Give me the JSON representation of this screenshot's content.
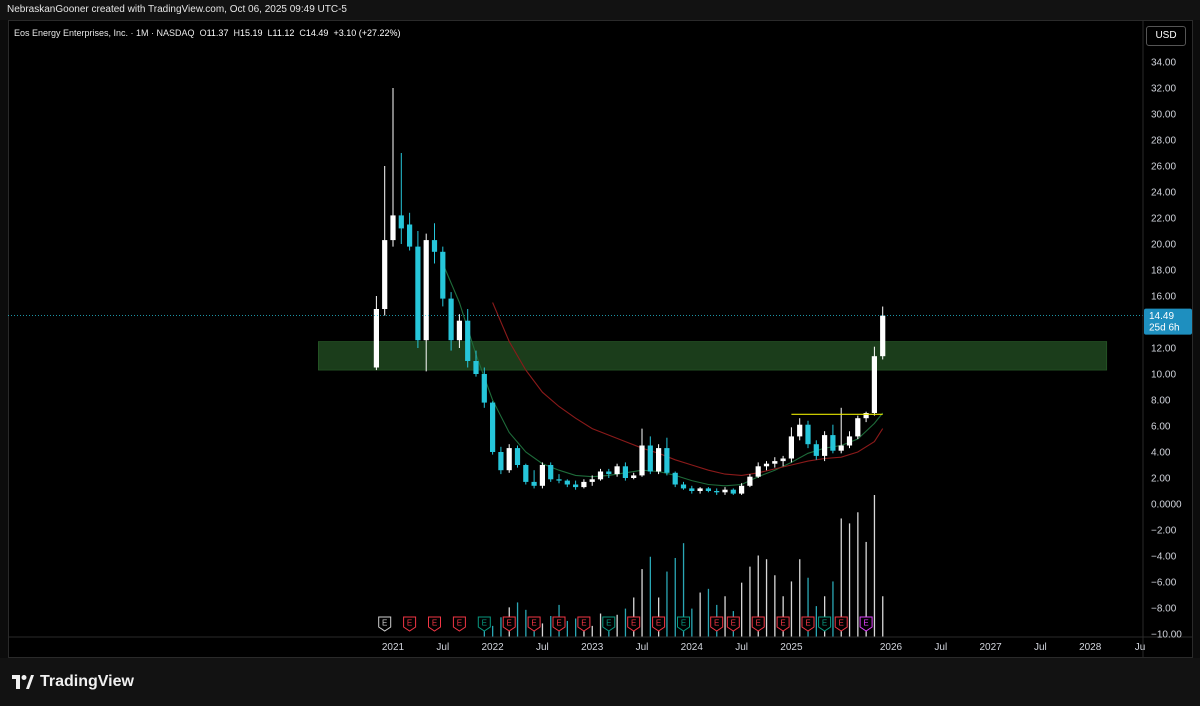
{
  "header": {
    "credit": "NebraskanGooner created with TradingView.com, Oct 06, 2025 09:49 UTC-5"
  },
  "legend": {
    "symbol": "Eos Energy Enterprises, Inc. · 1M · NASDAQ",
    "open_label": "O",
    "open": "11.37",
    "high_label": "H",
    "high": "15.19",
    "low_label": "L",
    "low": "11.12",
    "close_label": "C",
    "close": "14.49",
    "change": "+3.10 (+27.22%)"
  },
  "currency_button": "USD",
  "footer": {
    "brand": "TradingView",
    "logo_icon": "tradingview-logo-icon"
  },
  "colors": {
    "up": "#ffffff",
    "down": "#26c6da",
    "zone": "#1b3d1b",
    "ma_fast": "#1e6b3a",
    "ma_slow": "#8b1a1a",
    "resistance": "#e5e500",
    "earnings_down": "#f23645",
    "earnings_up": "#089981",
    "earnings_next": "#e040fb"
  },
  "chart_data": {
    "type": "candlestick",
    "interval": "1M",
    "y_ticks": [
      "34.00",
      "32.00",
      "30.00",
      "28.00",
      "26.00",
      "24.00",
      "22.00",
      "20.00",
      "18.00",
      "16.00",
      "14.00",
      "12.00",
      "10.00",
      "8.00",
      "6.00",
      "4.00",
      "2.00",
      "0.0000",
      "−2.00",
      "−4.00",
      "−6.00",
      "−8.00",
      "−10.00"
    ],
    "ylim": [
      -11,
      35
    ],
    "x_ticks": [
      {
        "label": "2021",
        "m": 0
      },
      {
        "label": "Jul",
        "m": 6
      },
      {
        "label": "2022",
        "m": 12
      },
      {
        "label": "Jul",
        "m": 18
      },
      {
        "label": "2023",
        "m": 24
      },
      {
        "label": "Jul",
        "m": 30
      },
      {
        "label": "2024",
        "m": 36
      },
      {
        "label": "Jul",
        "m": 42
      },
      {
        "label": "2025",
        "m": 48
      },
      {
        "label": "2026",
        "m": 60
      },
      {
        "label": "Jul",
        "m": 66
      },
      {
        "label": "2027",
        "m": 72
      },
      {
        "label": "Jul",
        "m": 78
      },
      {
        "label": "2028",
        "m": 84
      },
      {
        "label": "Ju",
        "m": 90
      }
    ],
    "candles": [
      {
        "m": -2,
        "o": 10.5,
        "h": 16,
        "l": 10.3,
        "c": 15
      },
      {
        "m": -1,
        "o": 15,
        "h": 26,
        "l": 14.5,
        "c": 20.3
      },
      {
        "m": 0,
        "o": 20.3,
        "h": 32,
        "l": 19.8,
        "c": 22.2
      },
      {
        "m": 1,
        "o": 22.2,
        "h": 27,
        "l": 20,
        "c": 21.2
      },
      {
        "m": 2,
        "o": 21.5,
        "h": 22.4,
        "l": 19.5,
        "c": 19.8
      },
      {
        "m": 3,
        "o": 19.8,
        "h": 21,
        "l": 12,
        "c": 12.6
      },
      {
        "m": 4,
        "o": 12.6,
        "h": 20.8,
        "l": 10.2,
        "c": 20.3
      },
      {
        "m": 5,
        "o": 20.3,
        "h": 21.6,
        "l": 18.5,
        "c": 19.4
      },
      {
        "m": 6,
        "o": 19.4,
        "h": 19.8,
        "l": 15.2,
        "c": 15.8
      },
      {
        "m": 7,
        "o": 15.8,
        "h": 16.3,
        "l": 11.8,
        "c": 12.6
      },
      {
        "m": 8,
        "o": 12.6,
        "h": 14.6,
        "l": 12,
        "c": 14.1
      },
      {
        "m": 9,
        "o": 14.1,
        "h": 15,
        "l": 10.5,
        "c": 11
      },
      {
        "m": 10,
        "o": 11,
        "h": 11.8,
        "l": 9.8,
        "c": 10
      },
      {
        "m": 11,
        "o": 10,
        "h": 10.5,
        "l": 7.4,
        "c": 7.8
      },
      {
        "m": 12,
        "o": 7.8,
        "h": 7.9,
        "l": 3.8,
        "c": 4
      },
      {
        "m": 13,
        "o": 4,
        "h": 4.4,
        "l": 2.3,
        "c": 2.6
      },
      {
        "m": 14,
        "o": 2.6,
        "h": 4.6,
        "l": 2.4,
        "c": 4.3
      },
      {
        "m": 15,
        "o": 4.3,
        "h": 4.5,
        "l": 2.8,
        "c": 3
      },
      {
        "m": 16,
        "o": 3,
        "h": 3.1,
        "l": 1.5,
        "c": 1.7
      },
      {
        "m": 17,
        "o": 1.7,
        "h": 2.6,
        "l": 1.2,
        "c": 1.4
      },
      {
        "m": 18,
        "o": 1.4,
        "h": 3.2,
        "l": 1.2,
        "c": 3
      },
      {
        "m": 19,
        "o": 3,
        "h": 3.2,
        "l": 1.7,
        "c": 1.9
      },
      {
        "m": 20,
        "o": 1.9,
        "h": 2.3,
        "l": 1.6,
        "c": 1.8
      },
      {
        "m": 21,
        "o": 1.8,
        "h": 1.9,
        "l": 1.3,
        "c": 1.5
      },
      {
        "m": 22,
        "o": 1.5,
        "h": 1.8,
        "l": 1.1,
        "c": 1.3
      },
      {
        "m": 23,
        "o": 1.3,
        "h": 1.9,
        "l": 1.2,
        "c": 1.7
      },
      {
        "m": 24,
        "o": 1.7,
        "h": 2.2,
        "l": 1.4,
        "c": 1.9
      },
      {
        "m": 25,
        "o": 1.9,
        "h": 2.7,
        "l": 1.8,
        "c": 2.5
      },
      {
        "m": 26,
        "o": 2.5,
        "h": 2.7,
        "l": 2,
        "c": 2.3
      },
      {
        "m": 27,
        "o": 2.3,
        "h": 3.1,
        "l": 2.1,
        "c": 2.9
      },
      {
        "m": 28,
        "o": 2.9,
        "h": 3.2,
        "l": 1.8,
        "c": 2
      },
      {
        "m": 29,
        "o": 2,
        "h": 2.4,
        "l": 1.9,
        "c": 2.2
      },
      {
        "m": 30,
        "o": 2.2,
        "h": 5.8,
        "l": 2.1,
        "c": 4.5
      },
      {
        "m": 31,
        "o": 4.5,
        "h": 5.2,
        "l": 2.3,
        "c": 2.5
      },
      {
        "m": 32,
        "o": 2.5,
        "h": 4.6,
        "l": 2.3,
        "c": 4.3
      },
      {
        "m": 33,
        "o": 4.3,
        "h": 5.1,
        "l": 2.2,
        "c": 2.4
      },
      {
        "m": 34,
        "o": 2.4,
        "h": 2.5,
        "l": 1.3,
        "c": 1.5
      },
      {
        "m": 35,
        "o": 1.5,
        "h": 1.7,
        "l": 1.1,
        "c": 1.2
      },
      {
        "m": 36,
        "o": 1.2,
        "h": 1.4,
        "l": 0.8,
        "c": 1
      },
      {
        "m": 37,
        "o": 1,
        "h": 1.3,
        "l": 0.8,
        "c": 1.2
      },
      {
        "m": 38,
        "o": 1.2,
        "h": 1.3,
        "l": 0.9,
        "c": 1
      },
      {
        "m": 39,
        "o": 1,
        "h": 1.2,
        "l": 0.7,
        "c": 0.9
      },
      {
        "m": 40,
        "o": 0.9,
        "h": 1.3,
        "l": 0.7,
        "c": 1.1
      },
      {
        "m": 41,
        "o": 1.1,
        "h": 1.2,
        "l": 0.7,
        "c": 0.8
      },
      {
        "m": 42,
        "o": 0.8,
        "h": 1.6,
        "l": 0.7,
        "c": 1.4
      },
      {
        "m": 43,
        "o": 1.4,
        "h": 2.3,
        "l": 1.3,
        "c": 2.1
      },
      {
        "m": 44,
        "o": 2.1,
        "h": 3.2,
        "l": 2,
        "c": 2.9
      },
      {
        "m": 45,
        "o": 2.9,
        "h": 3.3,
        "l": 2.6,
        "c": 3.1
      },
      {
        "m": 46,
        "o": 3.1,
        "h": 3.6,
        "l": 2.8,
        "c": 3.3
      },
      {
        "m": 47,
        "o": 3.3,
        "h": 3.7,
        "l": 2.9,
        "c": 3.5
      },
      {
        "m": 48,
        "o": 3.5,
        "h": 5.9,
        "l": 3.2,
        "c": 5.2
      },
      {
        "m": 49,
        "o": 5.2,
        "h": 6.6,
        "l": 4.9,
        "c": 6.1
      },
      {
        "m": 50,
        "o": 6.1,
        "h": 6.4,
        "l": 4.3,
        "c": 4.6
      },
      {
        "m": 51,
        "o": 4.6,
        "h": 4.9,
        "l": 3.4,
        "c": 3.7
      },
      {
        "m": 52,
        "o": 3.7,
        "h": 5.6,
        "l": 3.3,
        "c": 5.3
      },
      {
        "m": 53,
        "o": 5.3,
        "h": 6.1,
        "l": 3.9,
        "c": 4.1
      },
      {
        "m": 54,
        "o": 4.1,
        "h": 7.4,
        "l": 3.9,
        "c": 4.5
      },
      {
        "m": 55,
        "o": 4.5,
        "h": 5.6,
        "l": 4.3,
        "c": 5.2
      },
      {
        "m": 56,
        "o": 5.2,
        "h": 6.8,
        "l": 5,
        "c": 6.6
      },
      {
        "m": 57,
        "o": 6.6,
        "h": 7.1,
        "l": 6.3,
        "c": 7
      },
      {
        "m": 58,
        "o": 7,
        "h": 12.1,
        "l": 6.8,
        "c": 11.37
      },
      {
        "m": 59,
        "o": 11.37,
        "h": 15.19,
        "l": 11.12,
        "c": 14.49
      }
    ],
    "volume_scale_max": 9,
    "volume": [
      {
        "m": 11,
        "v": 1.6
      },
      {
        "m": 12,
        "v": 0.9
      },
      {
        "m": 13,
        "v": 1.6
      },
      {
        "m": 14,
        "v": 2.4
      },
      {
        "m": 15,
        "v": 2.8
      },
      {
        "m": 16,
        "v": 2.2
      },
      {
        "m": 17,
        "v": 1.4
      },
      {
        "m": 18,
        "v": 1.1
      },
      {
        "m": 19,
        "v": 1.7
      },
      {
        "m": 20,
        "v": 2.6
      },
      {
        "m": 21,
        "v": 1.3
      },
      {
        "m": 22,
        "v": 1.5
      },
      {
        "m": 23,
        "v": 1.1
      },
      {
        "m": 24,
        "v": 0.9
      },
      {
        "m": 25,
        "v": 1.9
      },
      {
        "m": 26,
        "v": 1.3
      },
      {
        "m": 27,
        "v": 1.8
      },
      {
        "m": 28,
        "v": 2.3
      },
      {
        "m": 29,
        "v": 3.2
      },
      {
        "m": 30,
        "v": 5.5
      },
      {
        "m": 31,
        "v": 6.5
      },
      {
        "m": 32,
        "v": 3.2
      },
      {
        "m": 33,
        "v": 5.3
      },
      {
        "m": 34,
        "v": 6.4
      },
      {
        "m": 35,
        "v": 7.6
      },
      {
        "m": 36,
        "v": 2.3
      },
      {
        "m": 37,
        "v": 3.6
      },
      {
        "m": 38,
        "v": 3.9
      },
      {
        "m": 39,
        "v": 2.6
      },
      {
        "m": 40,
        "v": 3.3
      },
      {
        "m": 41,
        "v": 2.1
      },
      {
        "m": 42,
        "v": 4.4
      },
      {
        "m": 43,
        "v": 5.7
      },
      {
        "m": 44,
        "v": 6.6
      },
      {
        "m": 45,
        "v": 6.3
      },
      {
        "m": 46,
        "v": 5.0
      },
      {
        "m": 47,
        "v": 3.3
      },
      {
        "m": 48,
        "v": 4.5
      },
      {
        "m": 49,
        "v": 6.3
      },
      {
        "m": 50,
        "v": 4.8
      },
      {
        "m": 51,
        "v": 2.5
      },
      {
        "m": 52,
        "v": 3.3
      },
      {
        "m": 53,
        "v": 4.5
      },
      {
        "m": 54,
        "v": 9.6
      },
      {
        "m": 55,
        "v": 9.2
      },
      {
        "m": 56,
        "v": 10.1
      },
      {
        "m": 57,
        "v": 7.7
      },
      {
        "m": 58,
        "v": 11.5
      },
      {
        "m": 59,
        "v": 3.3
      }
    ],
    "ma_fast": [
      [
        6,
        18.5
      ],
      [
        8,
        15.5
      ],
      [
        10,
        11.5
      ],
      [
        12,
        8
      ],
      [
        14,
        5.5
      ],
      [
        16,
        4
      ],
      [
        18,
        3.1
      ],
      [
        20,
        2.6
      ],
      [
        22,
        2.2
      ],
      [
        24,
        2.1
      ],
      [
        26,
        2.2
      ],
      [
        28,
        2.4
      ],
      [
        30,
        2.6
      ],
      [
        32,
        2.5
      ],
      [
        34,
        2.2
      ],
      [
        36,
        1.8
      ],
      [
        38,
        1.5
      ],
      [
        40,
        1.4
      ],
      [
        42,
        1.5
      ],
      [
        44,
        2.1
      ],
      [
        46,
        2.6
      ],
      [
        48,
        3.2
      ],
      [
        50,
        3.9
      ],
      [
        52,
        4.3
      ],
      [
        54,
        4.5
      ],
      [
        56,
        5
      ],
      [
        58,
        6.2
      ],
      [
        59,
        7
      ]
    ],
    "ma_slow": [
      [
        12,
        15.5
      ],
      [
        14,
        12.5
      ],
      [
        16,
        10.3
      ],
      [
        18,
        8.6
      ],
      [
        20,
        7.5
      ],
      [
        22,
        6.6
      ],
      [
        24,
        5.8
      ],
      [
        26,
        5.3
      ],
      [
        28,
        4.8
      ],
      [
        30,
        4.3
      ],
      [
        32,
        3.9
      ],
      [
        34,
        3.4
      ],
      [
        36,
        3
      ],
      [
        38,
        2.6
      ],
      [
        40,
        2.3
      ],
      [
        42,
        2.2
      ],
      [
        44,
        2.4
      ],
      [
        46,
        2.7
      ],
      [
        48,
        3
      ],
      [
        50,
        3.3
      ],
      [
        52,
        3.5
      ],
      [
        54,
        3.6
      ],
      [
        56,
        4
      ],
      [
        58,
        4.8
      ],
      [
        59,
        5.8
      ]
    ],
    "support_zone": {
      "from": 10.3,
      "to": 12.5,
      "m_start": -9,
      "m_end": 86
    },
    "resistance_line": {
      "y": 6.9,
      "m_start": 48,
      "m_end": 59
    },
    "last_price": {
      "value": "14.49",
      "countdown": "25d 6h",
      "y": 14.49
    },
    "earnings_markers": [
      {
        "m": -1,
        "kind": "neutral",
        "label": "E"
      },
      {
        "m": 2,
        "kind": "down",
        "label": "E"
      },
      {
        "m": 5,
        "kind": "down",
        "label": "E"
      },
      {
        "m": 8,
        "kind": "down",
        "label": "E"
      },
      {
        "m": 11,
        "kind": "up",
        "label": "E"
      },
      {
        "m": 14,
        "kind": "down",
        "label": "E"
      },
      {
        "m": 17,
        "kind": "down",
        "label": "E"
      },
      {
        "m": 20,
        "kind": "down",
        "label": "E"
      },
      {
        "m": 23,
        "kind": "down",
        "label": "E"
      },
      {
        "m": 26,
        "kind": "up",
        "label": "E"
      },
      {
        "m": 29,
        "kind": "down",
        "label": "E"
      },
      {
        "m": 32,
        "kind": "down",
        "label": "E"
      },
      {
        "m": 35,
        "kind": "up",
        "label": "E"
      },
      {
        "m": 39,
        "kind": "down",
        "label": "E"
      },
      {
        "m": 41,
        "kind": "down",
        "label": "E"
      },
      {
        "m": 44,
        "kind": "down",
        "label": "E"
      },
      {
        "m": 47,
        "kind": "down",
        "label": "E"
      },
      {
        "m": 50,
        "kind": "down",
        "label": "E"
      },
      {
        "m": 52,
        "kind": "up",
        "label": "E"
      },
      {
        "m": 54,
        "kind": "down",
        "label": "E"
      },
      {
        "m": 57,
        "kind": "next",
        "label": "E"
      }
    ]
  }
}
